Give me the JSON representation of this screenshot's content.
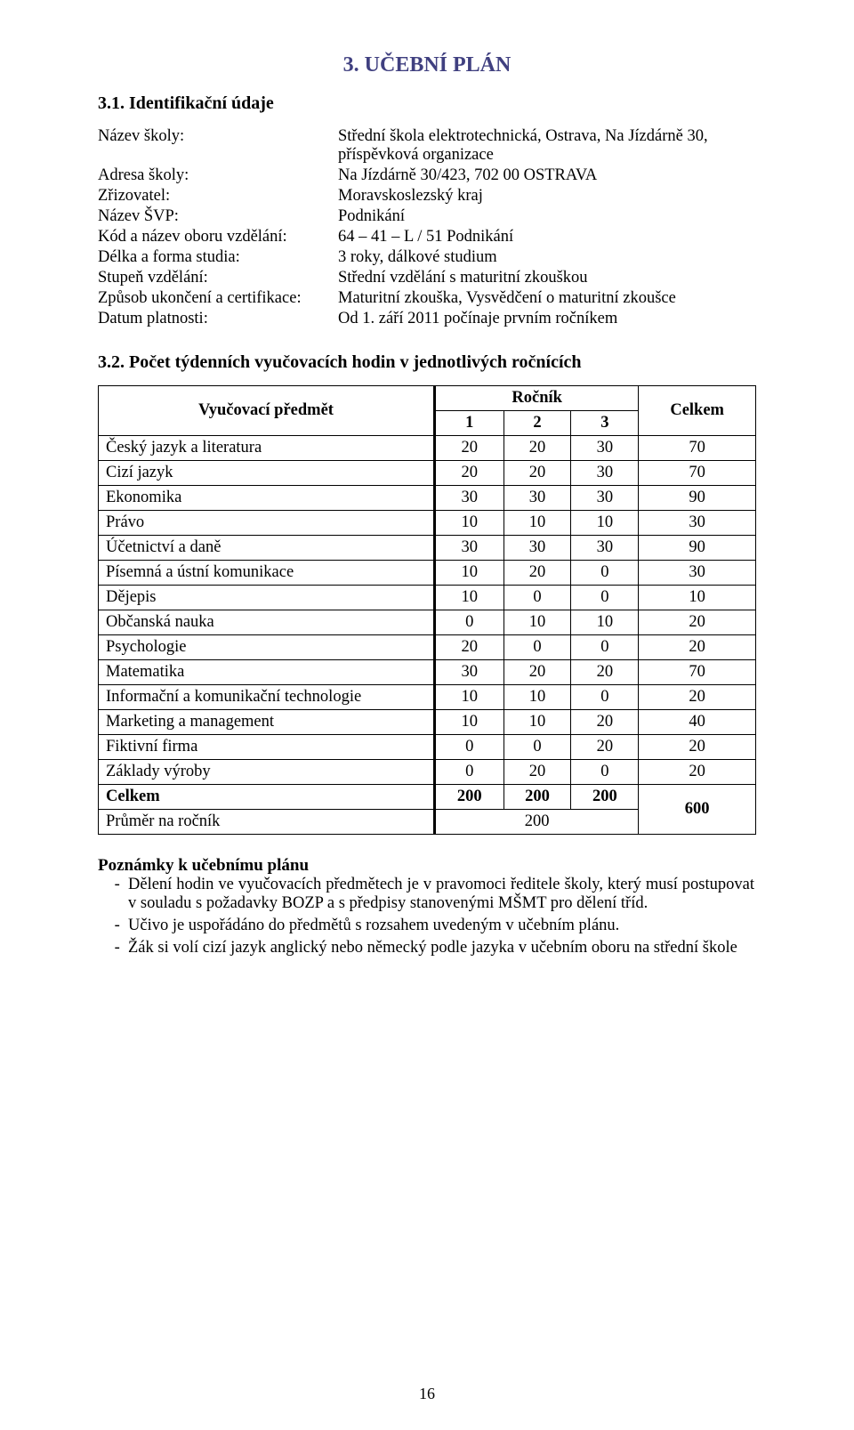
{
  "colors": {
    "heading": "#404080",
    "text": "#000000",
    "background": "#ffffff",
    "table_border": "#000000"
  },
  "typography": {
    "body_font": "Times New Roman",
    "body_size_pt": 14,
    "heading_size_pt": 18,
    "subheading_size_pt": 15
  },
  "plan_heading": "3. UČEBNÍ PLÁN",
  "ident_heading": "3.1. Identifikační údaje",
  "ident": {
    "rows": [
      {
        "label": "Název školy:",
        "value": "Střední škola elektrotechnická, Ostrava, Na Jízdárně 30, příspěvková organizace"
      },
      {
        "label": "Adresa školy:",
        "value": "Na Jízdárně 30/423, 702 00 OSTRAVA"
      },
      {
        "label": "Zřizovatel:",
        "value": "Moravskoslezský kraj"
      },
      {
        "label": "Název ŠVP:",
        "value": "Podnikání"
      },
      {
        "label": "Kód a název oboru vzdělání:",
        "value": "64 – 41 – L / 51  Podnikání"
      },
      {
        "label": "Délka a forma studia:",
        "value": "3 roky, dálkové studium"
      },
      {
        "label": "Stupeň vzdělání:",
        "value": "Střední vzdělání s maturitní zkouškou"
      },
      {
        "label": "Způsob ukončení a certifikace:",
        "value": "Maturitní zkouška, Vysvědčení o maturitní zkoušce"
      },
      {
        "label": "Datum platnosti:",
        "value": "Od 1. září 2011 počínaje prvním ročníkem"
      }
    ]
  },
  "hours_heading": "3.2. Počet týdenních vyučovacích hodin v jednotlivých ročnících",
  "hours_table": {
    "type": "table",
    "col_subject": "Vyučovací předmět",
    "col_year": "Ročník",
    "col_total": "Celkem",
    "year_labels": [
      "1",
      "2",
      "3"
    ],
    "rows": [
      {
        "subject": "Český jazyk a literatura",
        "y": [
          20,
          20,
          30
        ],
        "total": 70
      },
      {
        "subject": "Cizí jazyk",
        "y": [
          20,
          20,
          30
        ],
        "total": 70
      },
      {
        "subject": "Ekonomika",
        "y": [
          30,
          30,
          30
        ],
        "total": 90
      },
      {
        "subject": "Právo",
        "y": [
          10,
          10,
          10
        ],
        "total": 30
      },
      {
        "subject": "Účetnictví a daně",
        "y": [
          30,
          30,
          30
        ],
        "total": 90
      },
      {
        "subject": "Písemná a ústní komunikace",
        "y": [
          10,
          20,
          0
        ],
        "total": 30
      },
      {
        "subject": "Dějepis",
        "y": [
          10,
          0,
          0
        ],
        "total": 10
      },
      {
        "subject": "Občanská nauka",
        "y": [
          0,
          10,
          10
        ],
        "total": 20
      },
      {
        "subject": "Psychologie",
        "y": [
          20,
          0,
          0
        ],
        "total": 20
      },
      {
        "subject": "Matematika",
        "y": [
          30,
          20,
          20
        ],
        "total": 70
      },
      {
        "subject": "Informační a komunikační technologie",
        "y": [
          10,
          10,
          0
        ],
        "total": 20
      },
      {
        "subject": "Marketing a management",
        "y": [
          10,
          10,
          20
        ],
        "total": 40
      },
      {
        "subject": "Fiktivní firma",
        "y": [
          0,
          0,
          20
        ],
        "total": 20
      },
      {
        "subject": "Základy výroby",
        "y": [
          0,
          20,
          0
        ],
        "total": 20
      }
    ],
    "sum_label": "Celkem",
    "sum_years": [
      200,
      200,
      200
    ],
    "avg_label": "Průměr na ročník",
    "avg_value": 200,
    "grand_total": 600
  },
  "notes_heading": "Poznámky k učebnímu plánu",
  "notes": [
    "Dělení hodin ve vyučovacích předmětech je v pravomoci ředitele školy, který musí postupovat v souladu s požadavky BOZP a s předpisy stanovenými MŠMT pro dělení tříd.",
    "Učivo je uspořádáno do předmětů s rozsahem uvedeným v učebním plánu.",
    "Žák si volí cizí jazyk anglický nebo německý podle jazyka v učebním oboru na střední škole"
  ],
  "page_number": "16"
}
